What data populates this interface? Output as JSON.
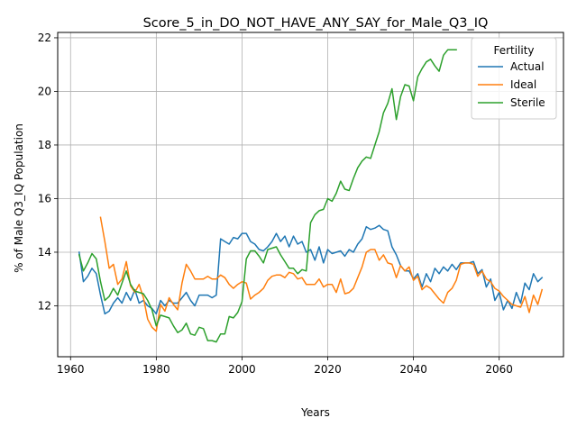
{
  "chart_data": {
    "type": "line",
    "title": "Score_5_in_DO_NOT_HAVE_ANY_SAY_for_Male_Q3_IQ",
    "xlabel": "Years",
    "ylabel": "% of Male Q3_IQ Population",
    "xlim": [
      1957,
      2075
    ],
    "ylim": [
      10.1,
      22.2
    ],
    "xticks": [
      1960,
      1980,
      2000,
      2020,
      2040,
      2060
    ],
    "yticks": [
      12,
      14,
      16,
      18,
      20,
      22
    ],
    "grid": true,
    "legend": {
      "title": "Fertility",
      "placement": "upper-right"
    },
    "series": [
      {
        "name": "Actual",
        "color": "#1f77b4",
        "x": [
          1962,
          1963,
          1964,
          1965,
          1966,
          1967,
          1968,
          1969,
          1970,
          1971,
          1972,
          1973,
          1974,
          1975,
          1976,
          1977,
          1978,
          1979,
          1980,
          1981,
          1982,
          1983,
          1984,
          1985,
          1986,
          1987,
          1988,
          1989,
          1990,
          1991,
          1992,
          1993,
          1994,
          1995,
          1996,
          1997,
          1998,
          1999,
          2000,
          2001,
          2002,
          2003,
          2004,
          2005,
          2006,
          2007,
          2008,
          2009,
          2010,
          2011,
          2012,
          2013,
          2014,
          2015,
          2016,
          2017,
          2018,
          2019,
          2020,
          2021,
          2022,
          2023,
          2024,
          2025,
          2026,
          2027,
          2028,
          2029,
          2030,
          2031,
          2032,
          2033,
          2034,
          2035,
          2036,
          2037,
          2038,
          2039,
          2040,
          2041,
          2042,
          2043,
          2044,
          2045,
          2046,
          2047,
          2048,
          2049,
          2050,
          2051,
          2052,
          2053,
          2054,
          2055,
          2056,
          2057,
          2058,
          2059,
          2060,
          2061,
          2062,
          2063,
          2064,
          2065,
          2066,
          2067,
          2068,
          2069,
          2070
        ],
        "y": [
          14.0,
          12.9,
          13.1,
          13.4,
          13.2,
          12.4,
          11.7,
          11.8,
          12.1,
          12.3,
          12.1,
          12.5,
          12.2,
          12.6,
          12.1,
          12.2,
          12.0,
          11.9,
          11.7,
          12.2,
          12.0,
          12.2,
          12.1,
          12.1,
          12.3,
          12.5,
          12.2,
          12.0,
          12.4,
          12.4,
          12.4,
          12.3,
          12.4,
          14.5,
          14.4,
          14.3,
          14.55,
          14.5,
          14.7,
          14.7,
          14.4,
          14.3,
          14.1,
          14.05,
          14.2,
          14.4,
          14.7,
          14.4,
          14.6,
          14.2,
          14.6,
          14.3,
          14.4,
          14.0,
          14.1,
          13.7,
          14.2,
          13.6,
          14.1,
          13.95,
          14.0,
          14.05,
          13.85,
          14.1,
          14.0,
          14.3,
          14.5,
          14.95,
          14.85,
          14.9,
          15.0,
          14.85,
          14.8,
          14.2,
          13.9,
          13.5,
          13.3,
          13.3,
          13.0,
          13.2,
          12.7,
          13.2,
          12.9,
          13.4,
          13.2,
          13.45,
          13.3,
          13.55,
          13.35,
          13.6,
          13.6,
          13.6,
          13.65,
          13.2,
          13.35,
          12.7,
          13.0,
          12.2,
          12.5,
          11.85,
          12.2,
          11.9,
          12.5,
          12.1,
          12.85,
          12.6,
          13.2,
          12.9,
          13.05
        ]
      },
      {
        "name": "Ideal",
        "color": "#ff7f0e",
        "x": [
          1967,
          1968,
          1969,
          1970,
          1971,
          1972,
          1973,
          1974,
          1975,
          1976,
          1977,
          1978,
          1979,
          1980,
          1981,
          1982,
          1983,
          1984,
          1985,
          1986,
          1987,
          1988,
          1989,
          1990,
          1991,
          1992,
          1993,
          1994,
          1995,
          1996,
          1997,
          1998,
          1999,
          2000,
          2001,
          2002,
          2003,
          2004,
          2005,
          2006,
          2007,
          2008,
          2009,
          2010,
          2011,
          2012,
          2013,
          2014,
          2015,
          2016,
          2017,
          2018,
          2019,
          2020,
          2021,
          2022,
          2023,
          2024,
          2025,
          2026,
          2027,
          2028,
          2029,
          2030,
          2031,
          2032,
          2033,
          2034,
          2035,
          2036,
          2037,
          2038,
          2039,
          2040,
          2041,
          2042,
          2043,
          2044,
          2045,
          2046,
          2047,
          2048,
          2049,
          2050,
          2051,
          2052,
          2053,
          2054,
          2055,
          2056,
          2057,
          2058,
          2059,
          2060,
          2061,
          2062,
          2063,
          2064,
          2065,
          2066,
          2067,
          2068,
          2069,
          2070
        ],
        "y": [
          15.3,
          14.4,
          13.4,
          13.55,
          12.8,
          13.0,
          13.65,
          12.75,
          12.5,
          12.8,
          12.3,
          11.5,
          11.2,
          11.05,
          12.05,
          11.8,
          12.3,
          12.05,
          11.85,
          12.85,
          13.55,
          13.3,
          13.0,
          13.0,
          13.0,
          13.1,
          13.0,
          13.0,
          13.15,
          13.05,
          12.8,
          12.65,
          12.8,
          12.9,
          12.85,
          12.25,
          12.4,
          12.5,
          12.65,
          12.95,
          13.1,
          13.15,
          13.15,
          13.05,
          13.25,
          13.2,
          13.0,
          13.05,
          12.8,
          12.8,
          12.8,
          13.0,
          12.7,
          12.8,
          12.8,
          12.5,
          13.0,
          12.45,
          12.5,
          12.65,
          13.05,
          13.45,
          14.0,
          14.1,
          14.1,
          13.7,
          13.9,
          13.6,
          13.55,
          13.05,
          13.5,
          13.3,
          13.45,
          12.95,
          13.1,
          12.6,
          12.75,
          12.65,
          12.45,
          12.25,
          12.1,
          12.5,
          12.65,
          12.95,
          13.55,
          13.6,
          13.6,
          13.55,
          13.1,
          13.3,
          13.0,
          12.9,
          12.65,
          12.55,
          12.35,
          12.2,
          12.05,
          12.0,
          11.95,
          12.35,
          11.75,
          12.4,
          12.05,
          12.6
        ]
      },
      {
        "name": "Sterile",
        "color": "#2ca02c",
        "x": [
          1962,
          1963,
          1964,
          1965,
          1966,
          1967,
          1968,
          1969,
          1970,
          1971,
          1972,
          1973,
          1974,
          1975,
          1976,
          1977,
          1978,
          1979,
          1980,
          1981,
          1982,
          1983,
          1984,
          1985,
          1986,
          1987,
          1988,
          1989,
          1990,
          1991,
          1992,
          1993,
          1994,
          1995,
          1996,
          1997,
          1998,
          1999,
          2000,
          2001,
          2002,
          2003,
          2004,
          2005,
          2006,
          2007,
          2008,
          2009,
          2010,
          2011,
          2012,
          2013,
          2014,
          2015,
          2016,
          2017,
          2018,
          2019,
          2020,
          2021,
          2022,
          2023,
          2024,
          2025,
          2026,
          2027,
          2028,
          2029,
          2030,
          2031,
          2032,
          2033,
          2034,
          2035,
          2036,
          2037,
          2038,
          2039,
          2040,
          2041,
          2042,
          2043,
          2044,
          2045,
          2046,
          2047,
          2048,
          2049,
          2050
        ],
        "y": [
          13.9,
          13.3,
          13.6,
          13.95,
          13.75,
          12.9,
          12.2,
          12.35,
          12.65,
          12.4,
          12.85,
          13.3,
          12.8,
          12.55,
          12.5,
          12.45,
          12.2,
          11.85,
          11.25,
          11.65,
          11.6,
          11.55,
          11.25,
          11.0,
          11.1,
          11.35,
          10.95,
          10.9,
          11.2,
          11.15,
          10.7,
          10.7,
          10.65,
          10.95,
          10.95,
          11.6,
          11.55,
          11.75,
          12.15,
          13.75,
          14.05,
          14.05,
          13.85,
          13.6,
          14.1,
          14.15,
          14.2,
          13.9,
          13.65,
          13.4,
          13.4,
          13.2,
          13.35,
          13.3,
          15.1,
          15.4,
          15.55,
          15.6,
          16.0,
          15.9,
          16.2,
          16.65,
          16.35,
          16.3,
          16.75,
          17.15,
          17.4,
          17.55,
          17.5,
          18.0,
          18.5,
          19.2,
          19.55,
          20.1,
          18.95,
          19.8,
          20.25,
          20.2,
          19.65,
          20.55,
          20.85,
          21.1,
          21.2,
          20.95,
          20.75,
          21.35,
          21.55,
          21.55,
          21.55
        ]
      }
    ]
  }
}
